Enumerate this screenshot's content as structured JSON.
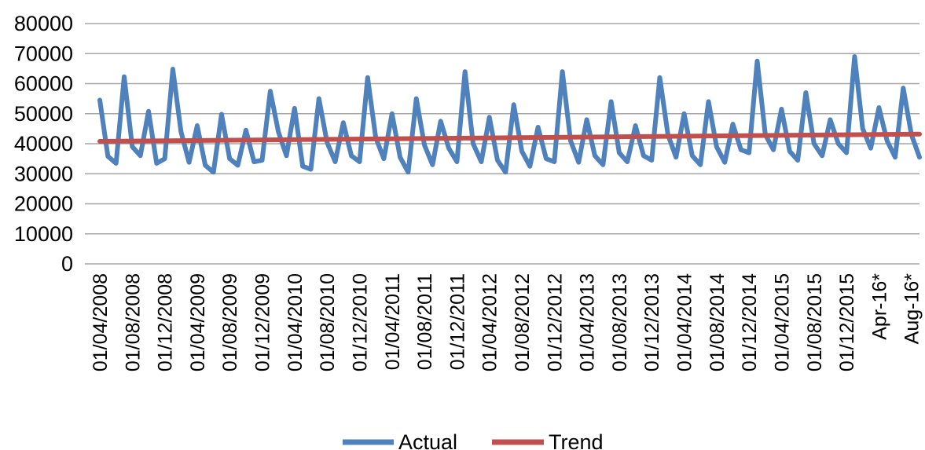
{
  "chart_data": {
    "type": "line",
    "y_ticks": [
      "0",
      "10000",
      "20000",
      "30000",
      "40000",
      "50000",
      "60000",
      "70000",
      "80000"
    ],
    "ylim": [
      0,
      80000
    ],
    "grid": "horizontal",
    "legend_position": "bottom",
    "x_tick_labels": [
      "01/04/2008",
      "01/08/2008",
      "01/12/2008",
      "01/04/2009",
      "01/08/2009",
      "01/12/2009",
      "01/04/2010",
      "01/08/2010",
      "01/12/2010",
      "01/04/2011",
      "01/08/2011",
      "01/12/2011",
      "01/04/2012",
      "01/08/2012",
      "01/12/2012",
      "01/04/2013",
      "01/08/2013",
      "01/12/2013",
      "01/04/2014",
      "01/08/2014",
      "01/12/2014",
      "01/04/2015",
      "01/08/2015",
      "01/12/2015",
      "Apr-16*",
      "Aug-16*"
    ],
    "x_tick_every_n_months": 4,
    "series": [
      {
        "name": "Actual",
        "color": "#4F81BD",
        "values": [
          54500,
          35800,
          33500,
          62300,
          39000,
          36000,
          50800,
          33500,
          35000,
          64800,
          44000,
          33800,
          46000,
          32800,
          30500,
          49800,
          35000,
          32800,
          44500,
          34000,
          34500,
          57500,
          44000,
          36000,
          51800,
          32500,
          31500,
          55000,
          40500,
          34000,
          47000,
          36000,
          34000,
          62000,
          42000,
          35000,
          50000,
          35500,
          30500,
          55000,
          39500,
          33000,
          47500,
          38500,
          34000,
          64000,
          40000,
          34000,
          48800,
          34500,
          30500,
          53000,
          37500,
          32500,
          45500,
          35000,
          34000,
          64000,
          41000,
          33800,
          48000,
          36000,
          33000,
          54000,
          37000,
          34000,
          46000,
          36000,
          34500,
          62000,
          43000,
          35500,
          50000,
          36000,
          33000,
          54000,
          39000,
          33800,
          46500,
          38000,
          37000,
          67500,
          43000,
          38000,
          51500,
          37500,
          34500,
          57000,
          40000,
          36000,
          48000,
          40000,
          37000,
          69000,
          45000,
          38500,
          52000,
          41000,
          35500,
          58500,
          43000,
          35500
        ]
      },
      {
        "name": "Trend",
        "color": "#C0504D",
        "values": [
          40800,
          43200
        ]
      }
    ]
  }
}
